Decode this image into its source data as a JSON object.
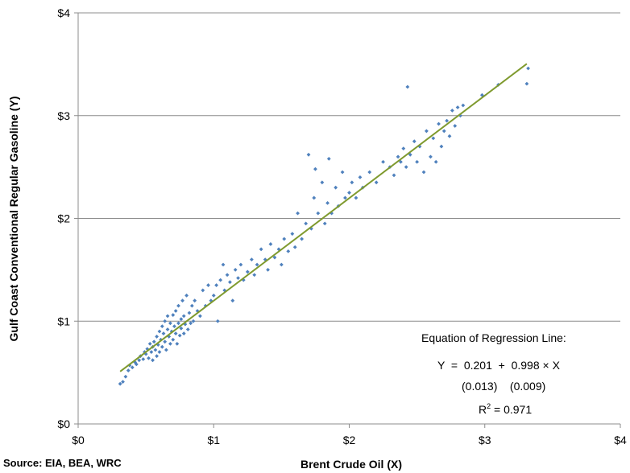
{
  "chart_data": {
    "type": "scatter",
    "title": "",
    "xlabel": "Brent Crude Oil (X)",
    "ylabel": "Gulf Coast Conventional Regular Gasoline (Y)",
    "xlim": [
      0,
      4
    ],
    "ylim": [
      0,
      4
    ],
    "x_ticks": [
      "$0",
      "$1",
      "$2",
      "$3",
      "$4"
    ],
    "y_ticks": [
      "$0",
      "$1",
      "$2",
      "$3",
      "$4"
    ],
    "grid": "horizontal",
    "marker_color": "#4F81BD",
    "line_color": "#7F9A2E",
    "regression_line": {
      "x": [
        0.31,
        3.31
      ],
      "intercept": 0.201,
      "slope": 0.998
    },
    "annotations": {
      "heading": "Equation of Regression Line:",
      "equation": "Y  =  0.201  +  0.998 × X",
      "std_errors": "(0.013)    (0.009)",
      "r2_label": "R",
      "r2_sup": "2",
      "r2_value": " = 0.971"
    },
    "points": [
      [
        0.31,
        0.39
      ],
      [
        0.33,
        0.41
      ],
      [
        0.35,
        0.46
      ],
      [
        0.37,
        0.52
      ],
      [
        0.38,
        0.57
      ],
      [
        0.4,
        0.55
      ],
      [
        0.42,
        0.6
      ],
      [
        0.43,
        0.58
      ],
      [
        0.45,
        0.62
      ],
      [
        0.46,
        0.66
      ],
      [
        0.48,
        0.63
      ],
      [
        0.49,
        0.7
      ],
      [
        0.5,
        0.68
      ],
      [
        0.51,
        0.73
      ],
      [
        0.52,
        0.64
      ],
      [
        0.53,
        0.78
      ],
      [
        0.54,
        0.7
      ],
      [
        0.55,
        0.75
      ],
      [
        0.55,
        0.62
      ],
      [
        0.56,
        0.8
      ],
      [
        0.57,
        0.72
      ],
      [
        0.58,
        0.85
      ],
      [
        0.58,
        0.66
      ],
      [
        0.59,
        0.77
      ],
      [
        0.6,
        0.9
      ],
      [
        0.6,
        0.7
      ],
      [
        0.61,
        0.82
      ],
      [
        0.62,
        0.95
      ],
      [
        0.62,
        0.75
      ],
      [
        0.63,
        0.88
      ],
      [
        0.64,
        0.8
      ],
      [
        0.64,
        1.0
      ],
      [
        0.65,
        0.72
      ],
      [
        0.66,
        0.92
      ],
      [
        0.66,
        1.05
      ],
      [
        0.67,
        0.85
      ],
      [
        0.68,
        0.78
      ],
      [
        0.68,
        0.98
      ],
      [
        0.69,
        0.9
      ],
      [
        0.7,
        1.06
      ],
      [
        0.7,
        0.82
      ],
      [
        0.71,
        0.95
      ],
      [
        0.72,
        0.88
      ],
      [
        0.72,
        1.1
      ],
      [
        0.73,
        0.78
      ],
      [
        0.74,
        0.98
      ],
      [
        0.74,
        1.15
      ],
      [
        0.75,
        0.86
      ],
      [
        0.76,
        1.02
      ],
      [
        0.76,
        0.93
      ],
      [
        0.77,
        1.2
      ],
      [
        0.78,
        0.88
      ],
      [
        0.78,
        1.05
      ],
      [
        0.79,
        0.97
      ],
      [
        0.8,
        1.25
      ],
      [
        0.81,
        0.92
      ],
      [
        0.82,
        1.08
      ],
      [
        0.83,
        0.98
      ],
      [
        0.84,
        1.15
      ],
      [
        0.85,
        1.0
      ],
      [
        0.86,
        1.2
      ],
      [
        0.88,
        1.1
      ],
      [
        0.9,
        1.05
      ],
      [
        0.92,
        1.3
      ],
      [
        0.94,
        1.15
      ],
      [
        0.96,
        1.35
      ],
      [
        0.98,
        1.2
      ],
      [
        1.0,
        1.25
      ],
      [
        1.02,
        1.35
      ],
      [
        1.03,
        1.0
      ],
      [
        1.05,
        1.4
      ],
      [
        1.07,
        1.55
      ],
      [
        1.08,
        1.3
      ],
      [
        1.1,
        1.45
      ],
      [
        1.12,
        1.38
      ],
      [
        1.14,
        1.2
      ],
      [
        1.16,
        1.5
      ],
      [
        1.18,
        1.42
      ],
      [
        1.2,
        1.55
      ],
      [
        1.22,
        1.4
      ],
      [
        1.25,
        1.48
      ],
      [
        1.28,
        1.6
      ],
      [
        1.3,
        1.45
      ],
      [
        1.32,
        1.55
      ],
      [
        1.35,
        1.7
      ],
      [
        1.38,
        1.6
      ],
      [
        1.4,
        1.5
      ],
      [
        1.42,
        1.75
      ],
      [
        1.45,
        1.62
      ],
      [
        1.48,
        1.7
      ],
      [
        1.5,
        1.55
      ],
      [
        1.52,
        1.8
      ],
      [
        1.55,
        1.68
      ],
      [
        1.58,
        1.85
      ],
      [
        1.6,
        1.72
      ],
      [
        1.62,
        2.05
      ],
      [
        1.65,
        1.8
      ],
      [
        1.68,
        1.95
      ],
      [
        1.7,
        2.62
      ],
      [
        1.72,
        1.9
      ],
      [
        1.74,
        2.2
      ],
      [
        1.75,
        2.48
      ],
      [
        1.77,
        2.05
      ],
      [
        1.8,
        2.35
      ],
      [
        1.82,
        1.95
      ],
      [
        1.84,
        2.15
      ],
      [
        1.85,
        2.58
      ],
      [
        1.87,
        2.05
      ],
      [
        1.9,
        2.3
      ],
      [
        1.92,
        2.12
      ],
      [
        1.95,
        2.45
      ],
      [
        1.97,
        2.2
      ],
      [
        2.0,
        2.25
      ],
      [
        2.02,
        2.35
      ],
      [
        2.05,
        2.2
      ],
      [
        2.08,
        2.4
      ],
      [
        2.1,
        2.3
      ],
      [
        2.15,
        2.45
      ],
      [
        2.2,
        2.35
      ],
      [
        2.25,
        2.55
      ],
      [
        2.3,
        2.5
      ],
      [
        2.33,
        2.42
      ],
      [
        2.36,
        2.6
      ],
      [
        2.38,
        2.55
      ],
      [
        2.4,
        2.68
      ],
      [
        2.42,
        2.5
      ],
      [
        2.43,
        3.28
      ],
      [
        2.45,
        2.62
      ],
      [
        2.48,
        2.75
      ],
      [
        2.5,
        2.55
      ],
      [
        2.52,
        2.7
      ],
      [
        2.55,
        2.45
      ],
      [
        2.57,
        2.85
      ],
      [
        2.6,
        2.6
      ],
      [
        2.62,
        2.78
      ],
      [
        2.64,
        2.55
      ],
      [
        2.66,
        2.92
      ],
      [
        2.68,
        2.7
      ],
      [
        2.7,
        2.85
      ],
      [
        2.72,
        2.95
      ],
      [
        2.74,
        2.8
      ],
      [
        2.76,
        3.05
      ],
      [
        2.78,
        2.9
      ],
      [
        2.8,
        3.08
      ],
      [
        2.82,
        3.0
      ],
      [
        2.84,
        3.1
      ],
      [
        2.98,
        3.2
      ],
      [
        3.1,
        3.3
      ],
      [
        3.31,
        3.31
      ],
      [
        3.32,
        3.46
      ]
    ]
  }
}
